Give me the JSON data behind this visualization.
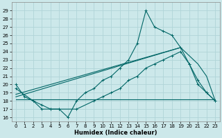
{
  "xlabel": "Humidex (Indice chaleur)",
  "bg_color": "#cce8ea",
  "line_color": "#006666",
  "grid_color": "#b0d4d8",
  "xlim": [
    -0.5,
    23.5
  ],
  "ylim": [
    15.5,
    30
  ],
  "xticks": [
    0,
    1,
    2,
    3,
    4,
    5,
    6,
    7,
    8,
    9,
    10,
    11,
    12,
    13,
    14,
    15,
    16,
    17,
    18,
    19,
    20,
    21,
    22,
    23
  ],
  "yticks": [
    16,
    17,
    18,
    19,
    20,
    21,
    22,
    23,
    24,
    25,
    26,
    27,
    28,
    29
  ],
  "line1_x": [
    0,
    1,
    2,
    3,
    4,
    5,
    6,
    7,
    8,
    9,
    10,
    11,
    12,
    13,
    14,
    15,
    16,
    17,
    18,
    19,
    20,
    21,
    22,
    23
  ],
  "line1_y": [
    20,
    18.5,
    18,
    17,
    17,
    17,
    16,
    18,
    19,
    19.5,
    20.5,
    21,
    22,
    23,
    25,
    29,
    27,
    26.5,
    26,
    24.5,
    22.5,
    20,
    19,
    18
  ],
  "line2_x": [
    0,
    2,
    3,
    4,
    5,
    7,
    9,
    10,
    11,
    12,
    13,
    14,
    15,
    16,
    17,
    18,
    19,
    20,
    21,
    22,
    23
  ],
  "line2_y": [
    19.5,
    18,
    17.5,
    17,
    17,
    17,
    18,
    18.5,
    19,
    19.5,
    20.5,
    21,
    22,
    22.5,
    23,
    23.5,
    24,
    22.5,
    20.5,
    19,
    18
  ],
  "line3_x": [
    0,
    23
  ],
  "line3_y": [
    18.2,
    18.2
  ],
  "line4_x": [
    0,
    19
  ],
  "line4_y": [
    18.5,
    24.5
  ],
  "line5_x": [
    0,
    19,
    21,
    22,
    23
  ],
  "line5_y": [
    18.8,
    24.5,
    22.5,
    21,
    18
  ]
}
